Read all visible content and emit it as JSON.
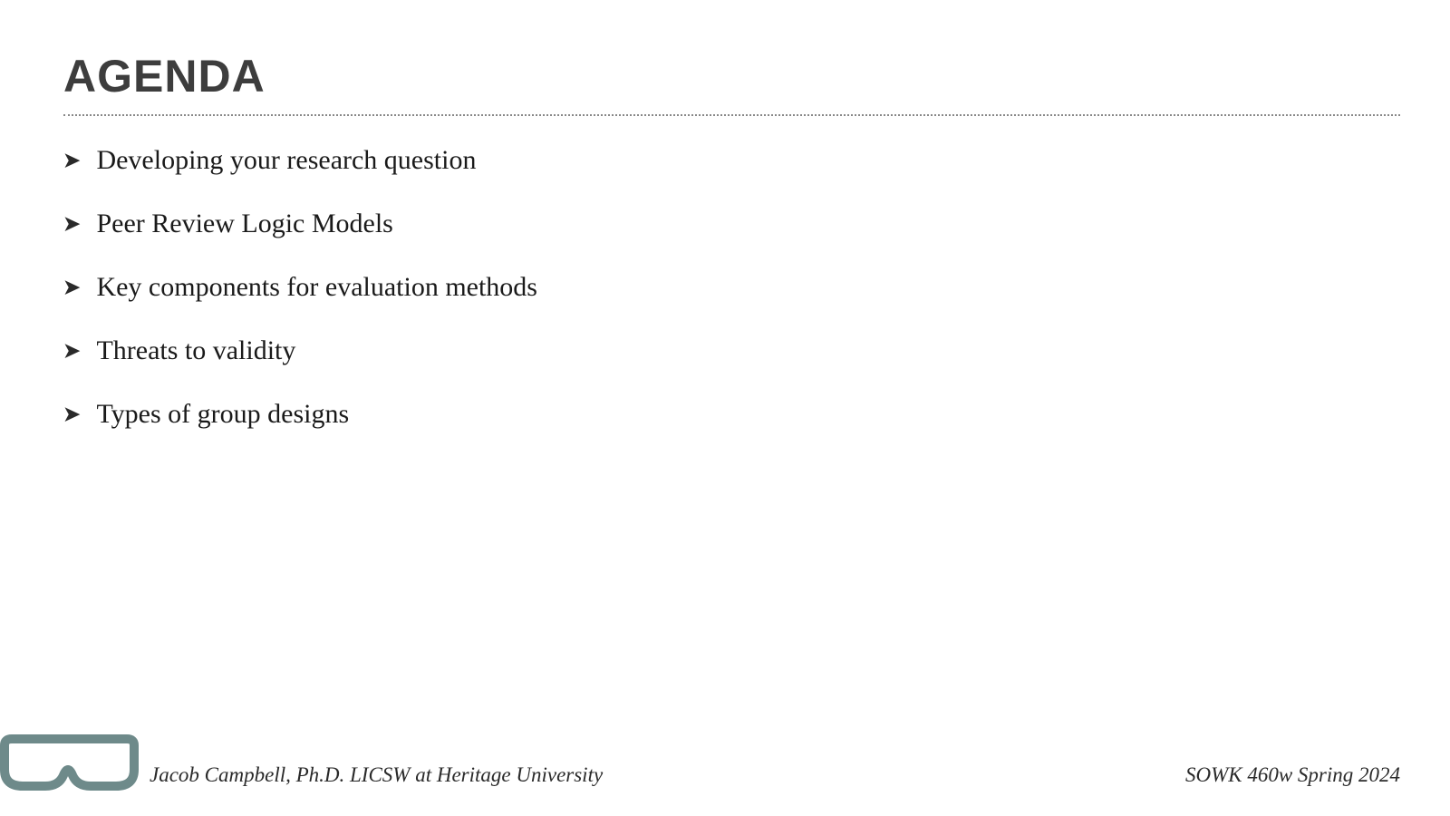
{
  "slide": {
    "title": "AGENDA",
    "title_fontsize": 50,
    "title_color": "#3d3d3d",
    "divider_color": "#888888",
    "divider_width": 2,
    "background_color": "#ffffff",
    "agenda_items": [
      "Developing your research question",
      "Peer Review Logic Models",
      "Key components for evaluation methods",
      "Threats to validity",
      "Types of group designs"
    ],
    "item_fontsize": 30,
    "item_color": "#1a1a1a",
    "item_spacing": 66,
    "bullet_char": "➤",
    "bullet_fontsize": 22,
    "footer": {
      "left": "Jacob Campbell, Ph.D. LICSW at Heritage University",
      "right": "SOWK 460w Spring 2024",
      "fontsize": 23,
      "color": "#2a2a2a"
    },
    "icon": {
      "stroke_color": "#6e8a8a",
      "stroke_width": 10,
      "width": 155,
      "height": 70
    }
  }
}
